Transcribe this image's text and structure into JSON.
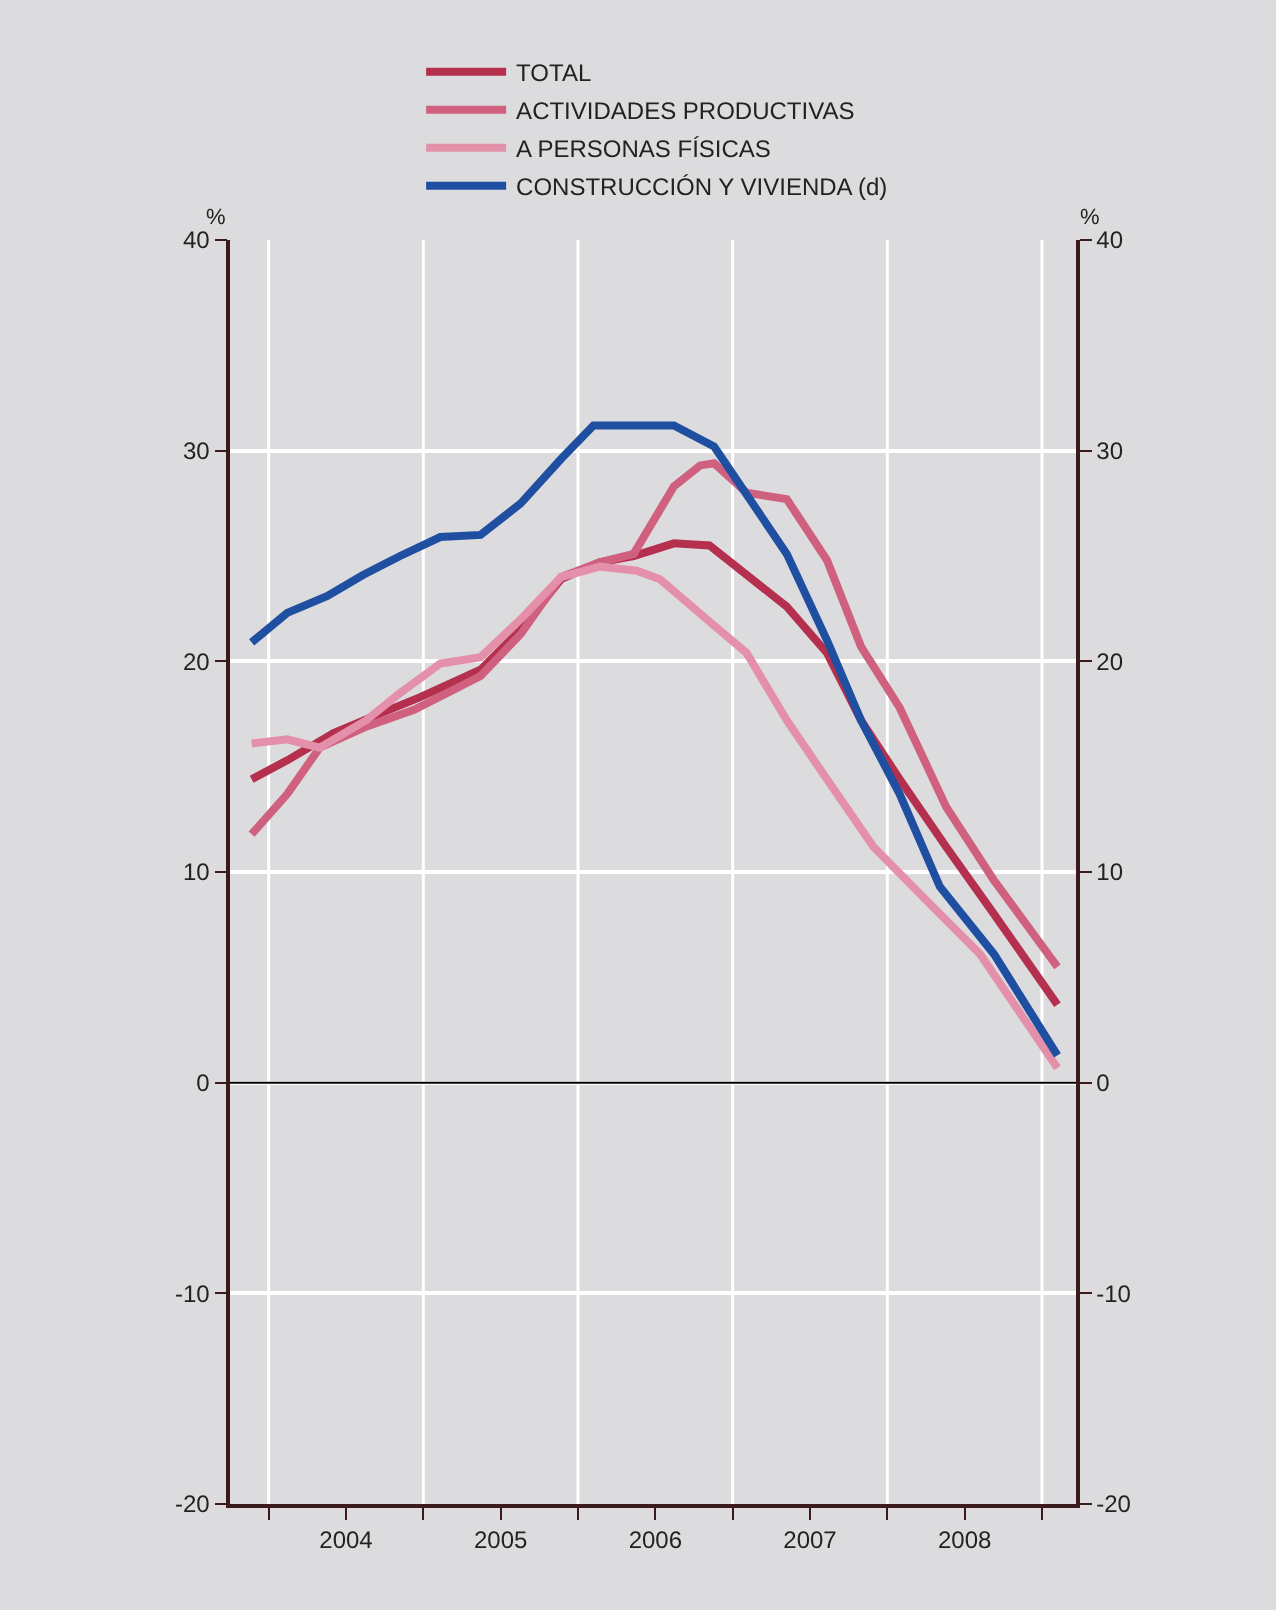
{
  "chart_data": {
    "type": "line",
    "annotations": [
      "%",
      "%"
    ],
    "legend": "top",
    "grid": true,
    "xlim": [
      2003.75,
      2009.22
    ],
    "xticks": [
      {
        "value": 2004,
        "label": null
      },
      {
        "value": 2004.5,
        "label": "2004"
      },
      {
        "value": 2005,
        "label": null
      },
      {
        "value": 2005.5,
        "label": "2005"
      },
      {
        "value": 2006,
        "label": null
      },
      {
        "value": 2006.5,
        "label": "2006"
      },
      {
        "value": 2007,
        "label": null
      },
      {
        "value": 2007.5,
        "label": "2007"
      },
      {
        "value": 2008,
        "label": null
      },
      {
        "value": 2008.5,
        "label": "2008"
      },
      {
        "value": 2009,
        "label": null
      }
    ],
    "ylim": [
      -20,
      40
    ],
    "yticks": [
      -20,
      -10,
      0,
      10,
      20,
      30,
      40
    ],
    "y2lim": [
      -20,
      40
    ],
    "y2ticks": [
      -20,
      -10,
      0,
      10,
      20,
      30,
      40
    ],
    "ref_lines": [
      {
        "axis": "y",
        "value": 0,
        "color": "#000000"
      }
    ],
    "series": [
      {
        "name": "TOTAL",
        "color": "#b5304f",
        "x": [
          2003.89,
          2004.12,
          2004.42,
          2004.68,
          2004.98,
          2005.37,
          2005.63,
          2005.89,
          2006.14,
          2006.36,
          2006.62,
          2006.85,
          2007.35,
          2007.61,
          2007.83,
          2008.08,
          2008.38,
          2008.69,
          2009.1
        ],
        "values": [
          14.4,
          15.3,
          16.6,
          17.4,
          18.3,
          19.6,
          21.5,
          23.9,
          24.7,
          25.0,
          25.6,
          25.5,
          22.6,
          20.4,
          17.2,
          14.4,
          11.2,
          8.0,
          3.7
        ]
      },
      {
        "name": "ACTIVIDADES PRODUCTIVAS",
        "color": "#d0607f",
        "x": [
          2003.89,
          2004.12,
          2004.33,
          2004.63,
          2004.94,
          2005.37,
          2005.63,
          2005.89,
          2006.14,
          2006.36,
          2006.62,
          2006.79,
          2006.88,
          2007.09,
          2007.35,
          2007.61,
          2007.83,
          2008.08,
          2008.38,
          2008.69,
          2009.1
        ],
        "values": [
          11.8,
          13.7,
          15.9,
          16.9,
          17.7,
          19.3,
          21.3,
          24.0,
          24.7,
          25.1,
          28.3,
          29.3,
          29.4,
          28.0,
          27.7,
          24.8,
          20.7,
          17.8,
          13.1,
          9.6,
          5.5
        ]
      },
      {
        "name": "A PERSONAS FÍSICAS",
        "color": "#e590aa",
        "x": [
          2003.89,
          2004.12,
          2004.33,
          2004.63,
          2004.85,
          2005.11,
          2005.37,
          2005.63,
          2005.89,
          2006.14,
          2006.38,
          2006.53,
          2006.88,
          2007.09,
          2007.35,
          2007.61,
          2007.91,
          2008.26,
          2008.6,
          2009.1
        ],
        "values": [
          16.1,
          16.3,
          15.9,
          17.2,
          18.5,
          19.9,
          20.2,
          22.0,
          24.0,
          24.5,
          24.3,
          23.9,
          21.7,
          20.4,
          17.2,
          14.4,
          11.2,
          8.6,
          6.1,
          0.7
        ]
      },
      {
        "name": "CONSTRUCCIÓN Y VIVIENDA (d)",
        "color": "#1f4fa0",
        "axis": "y2",
        "x": [
          2003.89,
          2004.12,
          2004.38,
          2004.61,
          2004.85,
          2005.11,
          2005.37,
          2005.63,
          2005.89,
          2006.1,
          2006.62,
          2006.88,
          2007.35,
          2007.61,
          2007.83,
          2008.08,
          2008.34,
          2008.69,
          2009.1
        ],
        "values": [
          20.9,
          22.3,
          23.1,
          24.1,
          25.0,
          25.9,
          26.0,
          27.5,
          29.6,
          31.2,
          31.2,
          30.2,
          25.1,
          21.0,
          17.2,
          13.7,
          9.3,
          6.1,
          1.3
        ]
      }
    ]
  }
}
